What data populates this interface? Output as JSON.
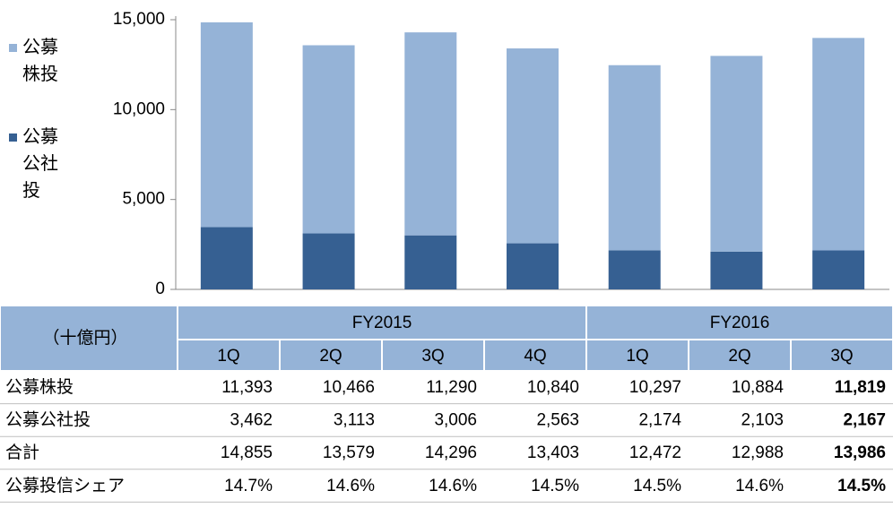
{
  "chart_data": {
    "type": "bar",
    "stacked": true,
    "categories": [
      "1Q",
      "2Q",
      "3Q",
      "4Q",
      "1Q",
      "2Q",
      "3Q"
    ],
    "series": [
      {
        "name": "公募株投",
        "color": "#95b3d7",
        "values": [
          11393,
          10466,
          11290,
          10840,
          10297,
          10884,
          11819
        ],
        "value_labels": [
          "11,393",
          "10,466",
          "11,290",
          "10,840",
          "10,297",
          "10,884",
          "11,819"
        ]
      },
      {
        "name": "公募公社投",
        "color": "#366092",
        "values": [
          3462,
          3113,
          3006,
          2563,
          2174,
          2103,
          2167
        ],
        "value_labels": [
          "3,462",
          "3,113",
          "3,006",
          "2,563",
          "2,174",
          "2,103",
          "2,167"
        ]
      }
    ],
    "ylim": [
      0,
      15000
    ],
    "yticks": [
      0,
      {
        "value": 5000,
        "label": "5,000"
      },
      {
        "value": 10000,
        "label": "10,000"
      },
      {
        "value": 15000,
        "label": "15,000"
      }
    ],
    "grid": false
  },
  "table": {
    "unit": "（十億円）",
    "groups": [
      {
        "label": "FY2015",
        "span": 4
      },
      {
        "label": "FY2016",
        "span": 3
      }
    ],
    "highlight_last": true,
    "rows": [
      {
        "label": "合計",
        "values": [
          14855,
          13579,
          14296,
          13403,
          12472,
          12988,
          13986
        ],
        "value_labels": [
          "14,855",
          "13,579",
          "14,296",
          "13,403",
          "12,472",
          "12,988",
          "13,986"
        ]
      },
      {
        "label": "公募投信シェア",
        "values": [
          14.7,
          14.6,
          14.6,
          14.5,
          14.5,
          14.6,
          14.5
        ],
        "value_labels": [
          "14.7%",
          "14.6%",
          "14.6%",
          "14.5%",
          "14.5%",
          "14.6%",
          "14.5%"
        ]
      }
    ]
  }
}
